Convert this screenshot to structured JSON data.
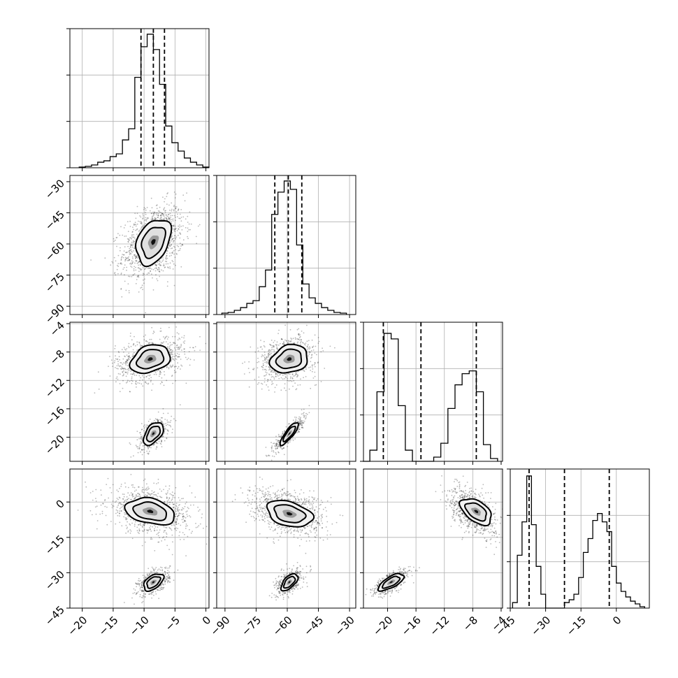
{
  "chart_data": {
    "type": "corner",
    "grid": true,
    "parameters": [
      {
        "ticks": [
          -20,
          -15,
          -10,
          -5,
          0
        ],
        "tick_labels": [
          "−20",
          "−15",
          "−10",
          "−5",
          "0"
        ],
        "range": [
          -22,
          0.5
        ]
      },
      {
        "ticks": [
          -90,
          -75,
          -60,
          -45,
          -30
        ],
        "tick_labels": [
          "−90",
          "−75",
          "−60",
          "−45",
          "−30"
        ],
        "range": [
          -94,
          -27
        ]
      },
      {
        "ticks": [
          -20,
          -16,
          -12,
          -8,
          -4
        ],
        "tick_labels": [
          "−20",
          "−16",
          "−12",
          "−8",
          "−4"
        ],
        "range": [
          -23.4,
          -3.8
        ]
      },
      {
        "ticks": [
          -45,
          -30,
          -15,
          0
        ],
        "tick_labels": [
          "−45",
          "−30",
          "−15",
          "0"
        ],
        "range": [
          -45,
          14
        ]
      }
    ],
    "histograms": [
      {
        "param": 0,
        "quantiles": [
          -10.5,
          -8.5,
          -6.7
        ],
        "bins": [
          {
            "x": -20,
            "h": 0.005
          },
          {
            "x": -19,
            "h": 0.01
          },
          {
            "x": -18,
            "h": 0.02
          },
          {
            "x": -17,
            "h": 0.04
          },
          {
            "x": -16,
            "h": 0.05
          },
          {
            "x": -15,
            "h": 0.08
          },
          {
            "x": -14,
            "h": 0.1
          },
          {
            "x": -13,
            "h": 0.2
          },
          {
            "x": -12,
            "h": 0.28
          },
          {
            "x": -11,
            "h": 0.65
          },
          {
            "x": -10,
            "h": 0.87
          },
          {
            "x": -9,
            "h": 0.96
          },
          {
            "x": -8,
            "h": 0.85
          },
          {
            "x": -7,
            "h": 0.6
          },
          {
            "x": -6,
            "h": 0.3
          },
          {
            "x": -5,
            "h": 0.18
          },
          {
            "x": -4,
            "h": 0.12
          },
          {
            "x": -3,
            "h": 0.07
          },
          {
            "x": -2,
            "h": 0.04
          },
          {
            "x": -1,
            "h": 0.02
          },
          {
            "x": 0,
            "h": 0.005
          }
        ]
      },
      {
        "param": 1,
        "quantiles": [
          -66,
          -59.5,
          -53
        ],
        "bins": [
          {
            "x": -90,
            "h": 0.01
          },
          {
            "x": -87,
            "h": 0.015
          },
          {
            "x": -84,
            "h": 0.03
          },
          {
            "x": -81,
            "h": 0.05
          },
          {
            "x": -78,
            "h": 0.08
          },
          {
            "x": -75,
            "h": 0.1
          },
          {
            "x": -72,
            "h": 0.2
          },
          {
            "x": -69,
            "h": 0.32
          },
          {
            "x": -66,
            "h": 0.72
          },
          {
            "x": -63,
            "h": 0.88
          },
          {
            "x": -60,
            "h": 0.96
          },
          {
            "x": -57,
            "h": 0.9
          },
          {
            "x": -54,
            "h": 0.5
          },
          {
            "x": -51,
            "h": 0.22
          },
          {
            "x": -48,
            "h": 0.12
          },
          {
            "x": -45,
            "h": 0.08
          },
          {
            "x": -42,
            "h": 0.05
          },
          {
            "x": -39,
            "h": 0.03
          },
          {
            "x": -36,
            "h": 0.015
          },
          {
            "x": -33,
            "h": 0.01
          }
        ]
      },
      {
        "param": 2,
        "quantiles": [
          -20.6,
          -15.3,
          -7.5
        ],
        "bins": [
          {
            "x": -23,
            "h": 0.0
          },
          {
            "x": -22,
            "h": 0.08
          },
          {
            "x": -21,
            "h": 0.5
          },
          {
            "x": -20,
            "h": 0.92
          },
          {
            "x": -19,
            "h": 0.88
          },
          {
            "x": -18,
            "h": 0.4
          },
          {
            "x": -17,
            "h": 0.08
          },
          {
            "x": -16,
            "h": 0.0
          },
          {
            "x": -15,
            "h": 0.0
          },
          {
            "x": -14,
            "h": 0.0
          },
          {
            "x": -13,
            "h": 0.03
          },
          {
            "x": -12,
            "h": 0.13
          },
          {
            "x": -11,
            "h": 0.38
          },
          {
            "x": -10,
            "h": 0.55
          },
          {
            "x": -9,
            "h": 0.63
          },
          {
            "x": -8,
            "h": 0.65
          },
          {
            "x": -7,
            "h": 0.5
          },
          {
            "x": -6,
            "h": 0.12
          },
          {
            "x": -5,
            "h": 0.02
          }
        ]
      },
      {
        "param": 3,
        "quantiles": [
          -37,
          -22,
          -3
        ],
        "bins": [
          {
            "x": -43,
            "h": 0.04
          },
          {
            "x": -41,
            "h": 0.38
          },
          {
            "x": -39,
            "h": 0.62
          },
          {
            "x": -37,
            "h": 0.95
          },
          {
            "x": -35,
            "h": 0.6
          },
          {
            "x": -33,
            "h": 0.3
          },
          {
            "x": -31,
            "h": 0.1
          },
          {
            "x": -29,
            "h": 0.0
          },
          {
            "x": -27,
            "h": 0.0
          },
          {
            "x": -25,
            "h": 0.0
          },
          {
            "x": -23,
            "h": 0.0
          },
          {
            "x": -21,
            "h": 0.04
          },
          {
            "x": -19,
            "h": 0.06
          },
          {
            "x": -17,
            "h": 0.1
          },
          {
            "x": -15,
            "h": 0.22
          },
          {
            "x": -13,
            "h": 0.4
          },
          {
            "x": -11,
            "h": 0.5
          },
          {
            "x": -9,
            "h": 0.63
          },
          {
            "x": -7,
            "h": 0.68
          },
          {
            "x": -5,
            "h": 0.62
          },
          {
            "x": -3,
            "h": 0.55
          },
          {
            "x": -1,
            "h": 0.3
          },
          {
            "x": 1,
            "h": 0.18
          },
          {
            "x": 3,
            "h": 0.12
          },
          {
            "x": 5,
            "h": 0.08
          },
          {
            "x": 7,
            "h": 0.05
          },
          {
            "x": 9,
            "h": 0.03
          },
          {
            "x": 11,
            "h": 0.01
          }
        ]
      }
    ],
    "joint_panels": [
      {
        "x_param": 0,
        "y_param": 1,
        "clusters": [
          {
            "cx": -8.5,
            "cy": -59,
            "sx": 2.5,
            "sy": 9,
            "rho": 0.35,
            "n": 1200
          }
        ],
        "contours": [
          {
            "cx": -8.5,
            "cy": -59,
            "sx": 1.4,
            "sy": 5.5,
            "rho": 0.35
          }
        ]
      },
      {
        "x_param": 0,
        "y_param": 2,
        "clusters": [
          {
            "cx": -9,
            "cy": -9,
            "sx": 2.8,
            "sy": 1.6,
            "rho": 0.3,
            "n": 800
          },
          {
            "cx": -8.5,
            "cy": -19.5,
            "sx": 1.2,
            "sy": 1.1,
            "rho": 0.5,
            "n": 500
          }
        ],
        "contours": [
          {
            "cx": -9,
            "cy": -9,
            "sx": 1.6,
            "sy": 1.0,
            "rho": 0.3
          },
          {
            "cx": -8.5,
            "cy": -19.5,
            "sx": 0.8,
            "sy": 0.8,
            "rho": 0.5
          }
        ]
      },
      {
        "x_param": 0,
        "y_param": 3,
        "clusters": [
          {
            "cx": -9,
            "cy": -4,
            "sx": 3.5,
            "sy": 5,
            "rho": -0.3,
            "n": 900
          },
          {
            "cx": -8.5,
            "cy": -34,
            "sx": 1.3,
            "sy": 2.8,
            "rho": 0.5,
            "n": 500
          }
        ],
        "contours": [
          {
            "cx": -9,
            "cy": -4,
            "sx": 2.0,
            "sy": 2.8,
            "rho": -0.3
          },
          {
            "cx": -8.5,
            "cy": -34,
            "sx": 0.8,
            "sy": 1.8,
            "rho": 0.5
          }
        ]
      },
      {
        "x_param": 1,
        "y_param": 2,
        "clusters": [
          {
            "cx": -60,
            "cy": -9,
            "sx": 7,
            "sy": 1.6,
            "rho": 0.2,
            "n": 800
          },
          {
            "cx": -59,
            "cy": -19.5,
            "sx": 3.5,
            "sy": 1.2,
            "rho": 0.85,
            "n": 500
          }
        ],
        "contours": [
          {
            "cx": -59,
            "cy": -9,
            "sx": 4.5,
            "sy": 1.0,
            "rho": 0.2
          },
          {
            "cx": -59,
            "cy": -19.5,
            "sx": 2.2,
            "sy": 0.8,
            "rho": 0.85
          }
        ]
      },
      {
        "x_param": 1,
        "y_param": 3,
        "clusters": [
          {
            "cx": -60,
            "cy": -4,
            "sx": 9,
            "sy": 5,
            "rho": -0.35,
            "n": 900
          },
          {
            "cx": -59,
            "cy": -34,
            "sx": 3.2,
            "sy": 2.8,
            "rho": 0.6,
            "n": 500
          }
        ],
        "contours": [
          {
            "cx": -59,
            "cy": -5,
            "sx": 5.5,
            "sy": 2.8,
            "rho": -0.35
          },
          {
            "cx": -59,
            "cy": -34,
            "sx": 2.0,
            "sy": 1.8,
            "rho": 0.6
          }
        ]
      },
      {
        "x_param": 2,
        "y_param": 3,
        "clusters": [
          {
            "cx": -8,
            "cy": -4,
            "sx": 1.6,
            "sy": 5,
            "rho": -0.5,
            "n": 800
          },
          {
            "cx": -19.5,
            "cy": -34,
            "sx": 1.3,
            "sy": 2.8,
            "rho": 0.7,
            "n": 500
          }
        ],
        "contours": [
          {
            "cx": -7.5,
            "cy": -4,
            "sx": 1.1,
            "sy": 2.8,
            "rho": -0.5
          },
          {
            "cx": -19.5,
            "cy": -34,
            "sx": 0.9,
            "sy": 1.8,
            "rho": 0.7
          }
        ]
      }
    ]
  }
}
